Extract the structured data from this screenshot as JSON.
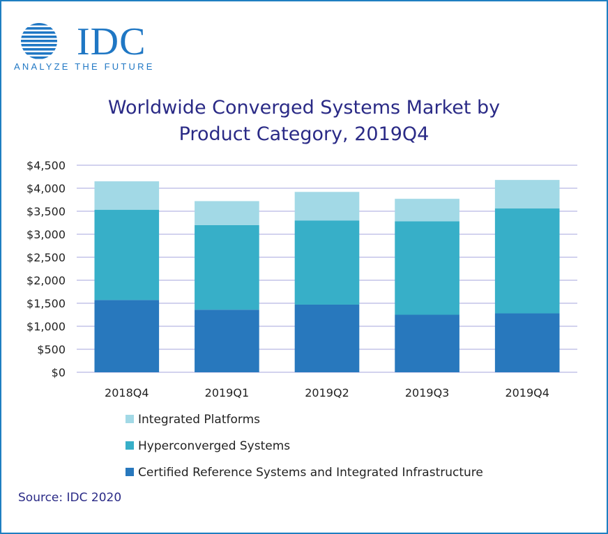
{
  "logo": {
    "wordmark": "IDC",
    "tagline": "ANALYZE THE FUTURE",
    "color": "#1f77c4"
  },
  "chart_data": {
    "type": "bar",
    "stacked": true,
    "title_lines": [
      "Worldwide Converged Systems Market by",
      "Product Category, 2019Q4"
    ],
    "categories": [
      "2018Q4",
      "2019Q1",
      "2019Q2",
      "2019Q3",
      "2019Q4"
    ],
    "series": [
      {
        "name": "Certified Reference Systems and Integrated Infrastructure",
        "color": "#2878bd",
        "values": [
          1570,
          1360,
          1470,
          1250,
          1280
        ]
      },
      {
        "name": "Hyperconverged Systems",
        "color": "#37afc8",
        "values": [
          1960,
          1840,
          1830,
          2030,
          2280
        ]
      },
      {
        "name": "Integrated Platforms",
        "color": "#a2d9e6",
        "values": [
          620,
          520,
          620,
          490,
          620
        ]
      }
    ],
    "ylim": [
      0,
      4500
    ],
    "yticks": [
      0,
      500,
      1000,
      1500,
      2000,
      2500,
      3000,
      3500,
      4000,
      4500
    ],
    "ytick_labels": [
      "$0",
      "$500",
      "$1,000",
      "$1,500",
      "$2,000",
      "$2,500",
      "$3,000",
      "$3,500",
      "$4,000",
      "$4,500"
    ],
    "grid": true,
    "gridline_color": "#c3c3e8",
    "legend_position": "bottom",
    "legend_order": [
      "Integrated Platforms",
      "Hyperconverged Systems",
      "Certified Reference Systems and Integrated Infrastructure"
    ],
    "xlabel": "",
    "ylabel": ""
  },
  "source": "Source: IDC 2020"
}
